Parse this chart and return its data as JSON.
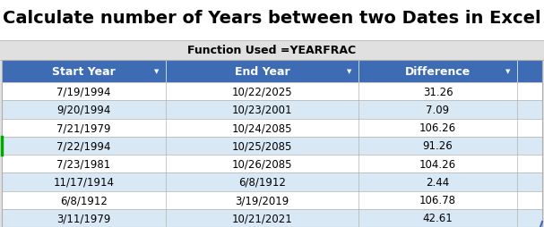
{
  "title": "Calculate number of Years between two Dates in Excel",
  "subtitle": "Function Used =YEARFRAC",
  "headers": [
    "Start Year",
    "End Year",
    "Difference"
  ],
  "rows": [
    [
      "7/19/1994",
      "10/22/2025",
      "31.26"
    ],
    [
      "9/20/1994",
      "10/23/2001",
      "7.09"
    ],
    [
      "7/21/1979",
      "10/24/2085",
      "106.26"
    ],
    [
      "7/22/1994",
      "10/25/2085",
      "91.26"
    ],
    [
      "7/23/1981",
      "10/26/2085",
      "104.26"
    ],
    [
      "11/17/1914",
      "6/8/1912",
      "2.44"
    ],
    [
      "6/8/1912",
      "3/19/2019",
      "106.78"
    ],
    [
      "3/11/1979",
      "10/21/2021",
      "42.61"
    ]
  ],
  "header_bg": "#3D6CB5",
  "header_fg": "#FFFFFF",
  "row_bg_white": "#FFFFFF",
  "row_bg_blue": "#D9E8F5",
  "title_bg": "#FFFFFF",
  "subtitle_bg": "#E0E0E0",
  "outer_bg": "#E0E0E0",
  "border_color": "#B0B0B0",
  "green_border": "#00AA00",
  "title_fontsize": 14,
  "subtitle_fontsize": 9,
  "cell_fontsize": 8.5,
  "header_fontsize": 9,
  "fig_width": 6.07,
  "fig_height": 2.55,
  "dpi": 100
}
